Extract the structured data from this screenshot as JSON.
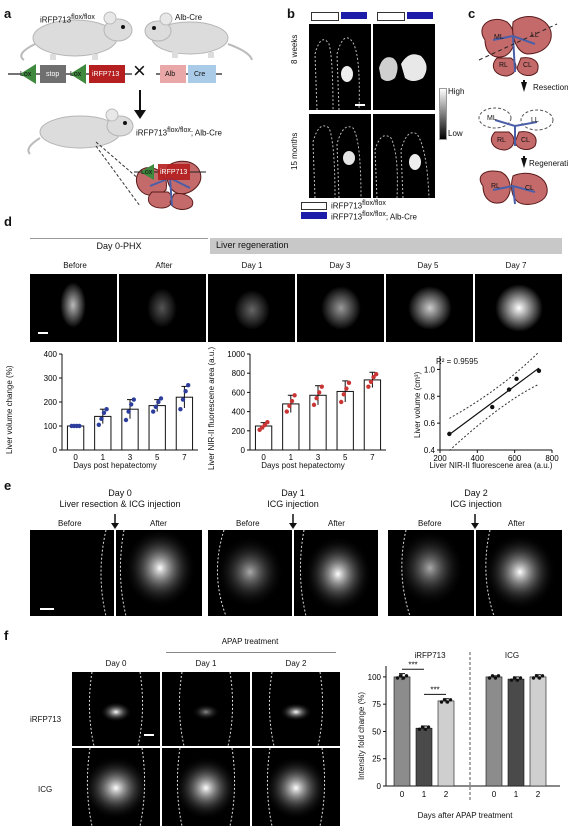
{
  "panels": {
    "a": "a",
    "b": "b",
    "c": "c",
    "d": "d",
    "e": "e",
    "f": "f"
  },
  "a": {
    "mouse1_label": "iRFP713",
    "mouse1_sup": "flox/flox",
    "mouse2_label": "Alb-Cre",
    "construct1": [
      "Lox",
      "stop",
      "Lox",
      "iRFP713"
    ],
    "construct2": [
      "Alb",
      "Cre"
    ],
    "cross": "×",
    "offspring_label": "iRFP713",
    "offspring_sup": "flox/flox",
    "offspring_suffix": "; Alb-Cre",
    "liver_construct": [
      "Lox",
      "iRFP713"
    ]
  },
  "b": {
    "row1": "8 weeks",
    "row2": "15 months",
    "scale_high": "High",
    "scale_low": "Low",
    "legend": [
      {
        "label": "iRFP713",
        "sup": "flox/flox",
        "color": "#ffffff"
      },
      {
        "label": "iRFP713",
        "sup": "flox/flox",
        "suffix": "; Alb-Cre",
        "color": "#1c1ca8"
      }
    ]
  },
  "c": {
    "lobes_top": [
      "ML",
      "LL",
      "RL",
      "CL"
    ],
    "lobes_mid": [
      "ML",
      "LL",
      "RL",
      "CL"
    ],
    "lobes_bot": [
      "RL",
      "CL"
    ],
    "step1": "Resection",
    "step2": "Regeneration"
  },
  "d": {
    "group1": "Day 0-PHX",
    "group2": "Liver regeneration",
    "images": [
      "Before",
      "After",
      "Day 1",
      "Day 3",
      "Day 5",
      "Day 7"
    ],
    "chart1": {
      "type": "bar",
      "ylabel": "Liver volume change (%)",
      "xlabel": "Days post hepatectomy",
      "categories": [
        "0",
        "1",
        "3",
        "5",
        "7"
      ],
      "values": [
        100,
        140,
        170,
        185,
        220
      ],
      "errors": [
        3,
        30,
        40,
        25,
        45
      ],
      "points": [
        [
          100,
          100,
          100,
          100
        ],
        [
          105,
          130,
          155,
          170
        ],
        [
          125,
          160,
          190,
          210
        ],
        [
          160,
          180,
          200,
          215
        ],
        [
          170,
          210,
          245,
          270
        ]
      ],
      "ylim": [
        0,
        400
      ],
      "yticks": [
        "0",
        "100",
        "200",
        "300",
        "400"
      ],
      "point_color": "#2c3d9c"
    },
    "chart2": {
      "type": "bar",
      "ylabel": "Liver NIR-II fluorescene area (a.u.)",
      "xlabel": "Days post hepatectomy",
      "categories": [
        "0",
        "1",
        "3",
        "5",
        "7"
      ],
      "values": [
        250,
        480,
        570,
        610,
        730
      ],
      "errors": [
        35,
        90,
        100,
        110,
        80
      ],
      "points": [
        [
          210,
          235,
          260,
          290
        ],
        [
          400,
          460,
          510,
          570
        ],
        [
          470,
          540,
          600,
          660
        ],
        [
          500,
          580,
          640,
          700
        ],
        [
          660,
          710,
          760,
          790
        ]
      ],
      "ylim": [
        0,
        1000
      ],
      "yticks": [
        "0",
        "200",
        "400",
        "600",
        "800",
        "1000"
      ],
      "point_color": "#c93535"
    },
    "chart3": {
      "type": "scatter",
      "ylabel": "Liver volume (cm³)",
      "xlabel": "Liver NIR-II fluorescene area (a.u.)",
      "annotation": "R² = 0.9595",
      "x": [
        250,
        480,
        570,
        610,
        730
      ],
      "y": [
        0.52,
        0.72,
        0.85,
        0.93,
        0.99
      ],
      "xlim": [
        200,
        800
      ],
      "ylim": [
        0.4,
        1.1
      ],
      "xticks": [
        "200",
        "400",
        "600",
        "800"
      ],
      "yticks": [
        "0.4",
        "0.6",
        "0.8",
        "1.0"
      ]
    }
  },
  "e": {
    "groups": [
      {
        "title": "Day 0",
        "subtitle": "Liver resection & ICG injection"
      },
      {
        "title": "Day 1",
        "subtitle": "ICG injection"
      },
      {
        "title": "Day 2",
        "subtitle": "ICG injection"
      }
    ],
    "before": "Before",
    "after": "After"
  },
  "f": {
    "treatment": "APAP treatment",
    "columns": [
      "Day 0",
      "Day 1",
      "Day 2"
    ],
    "rows": [
      "iRFP713",
      "ICG"
    ],
    "chart": {
      "type": "bar",
      "ylabel": "Intensity fold change (%)",
      "xlabel": "Days after APAP treatment",
      "groups": [
        "iRFP713",
        "ICG"
      ],
      "categories": [
        "0",
        "1",
        "2",
        "0",
        "1",
        "2"
      ],
      "values": [
        100,
        53,
        78,
        100,
        98,
        100
      ],
      "errors": [
        3,
        2,
        2,
        1,
        2,
        2
      ],
      "ylim": [
        0,
        110
      ],
      "yticks": [
        "0",
        "25",
        "50",
        "75",
        "100"
      ],
      "significance": [
        "***",
        "***"
      ],
      "colors": [
        "#8c8c8c",
        "#4a4a4a",
        "#cfcfcf"
      ]
    }
  }
}
